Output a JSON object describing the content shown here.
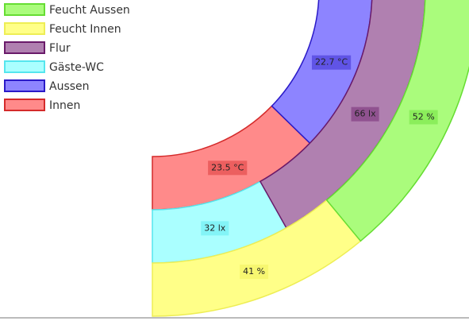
{
  "chart_data": {
    "type": "doughnut",
    "rings": [
      {
        "series": [
          {
            "name": "Innen",
            "color": "#ff8a8a",
            "border": "#d42a2a",
            "values": [
              23.5
            ],
            "value_labels": [
              "23.5 °C"
            ]
          },
          {
            "name": "Aussen",
            "color": "#8d84ff",
            "border": "#2a1ac8",
            "values": [
              22.7
            ],
            "value_labels": [
              "22.7 °C"
            ]
          }
        ]
      },
      {
        "series": [
          {
            "name": "Gäste-WC",
            "color": "#aaffff",
            "border": "#55e6ee",
            "values": [
              32
            ],
            "value_labels": [
              "32 lx"
            ]
          },
          {
            "name": "Flur",
            "color": "#b080b0",
            "border": "#6a1a6a",
            "values": [
              66
            ],
            "value_labels": [
              "66 lx"
            ]
          }
        ]
      },
      {
        "series": [
          {
            "name": "Feucht Innen",
            "color": "#ffff88",
            "border": "#eeee55",
            "values": [
              41
            ],
            "value_labels": [
              "41 %"
            ]
          },
          {
            "name": "Feucht Aussen",
            "color": "#aafc7c",
            "border": "#66dd33",
            "values": [
              52
            ],
            "value_labels": [
              "52 %"
            ]
          }
        ]
      }
    ]
  }
}
